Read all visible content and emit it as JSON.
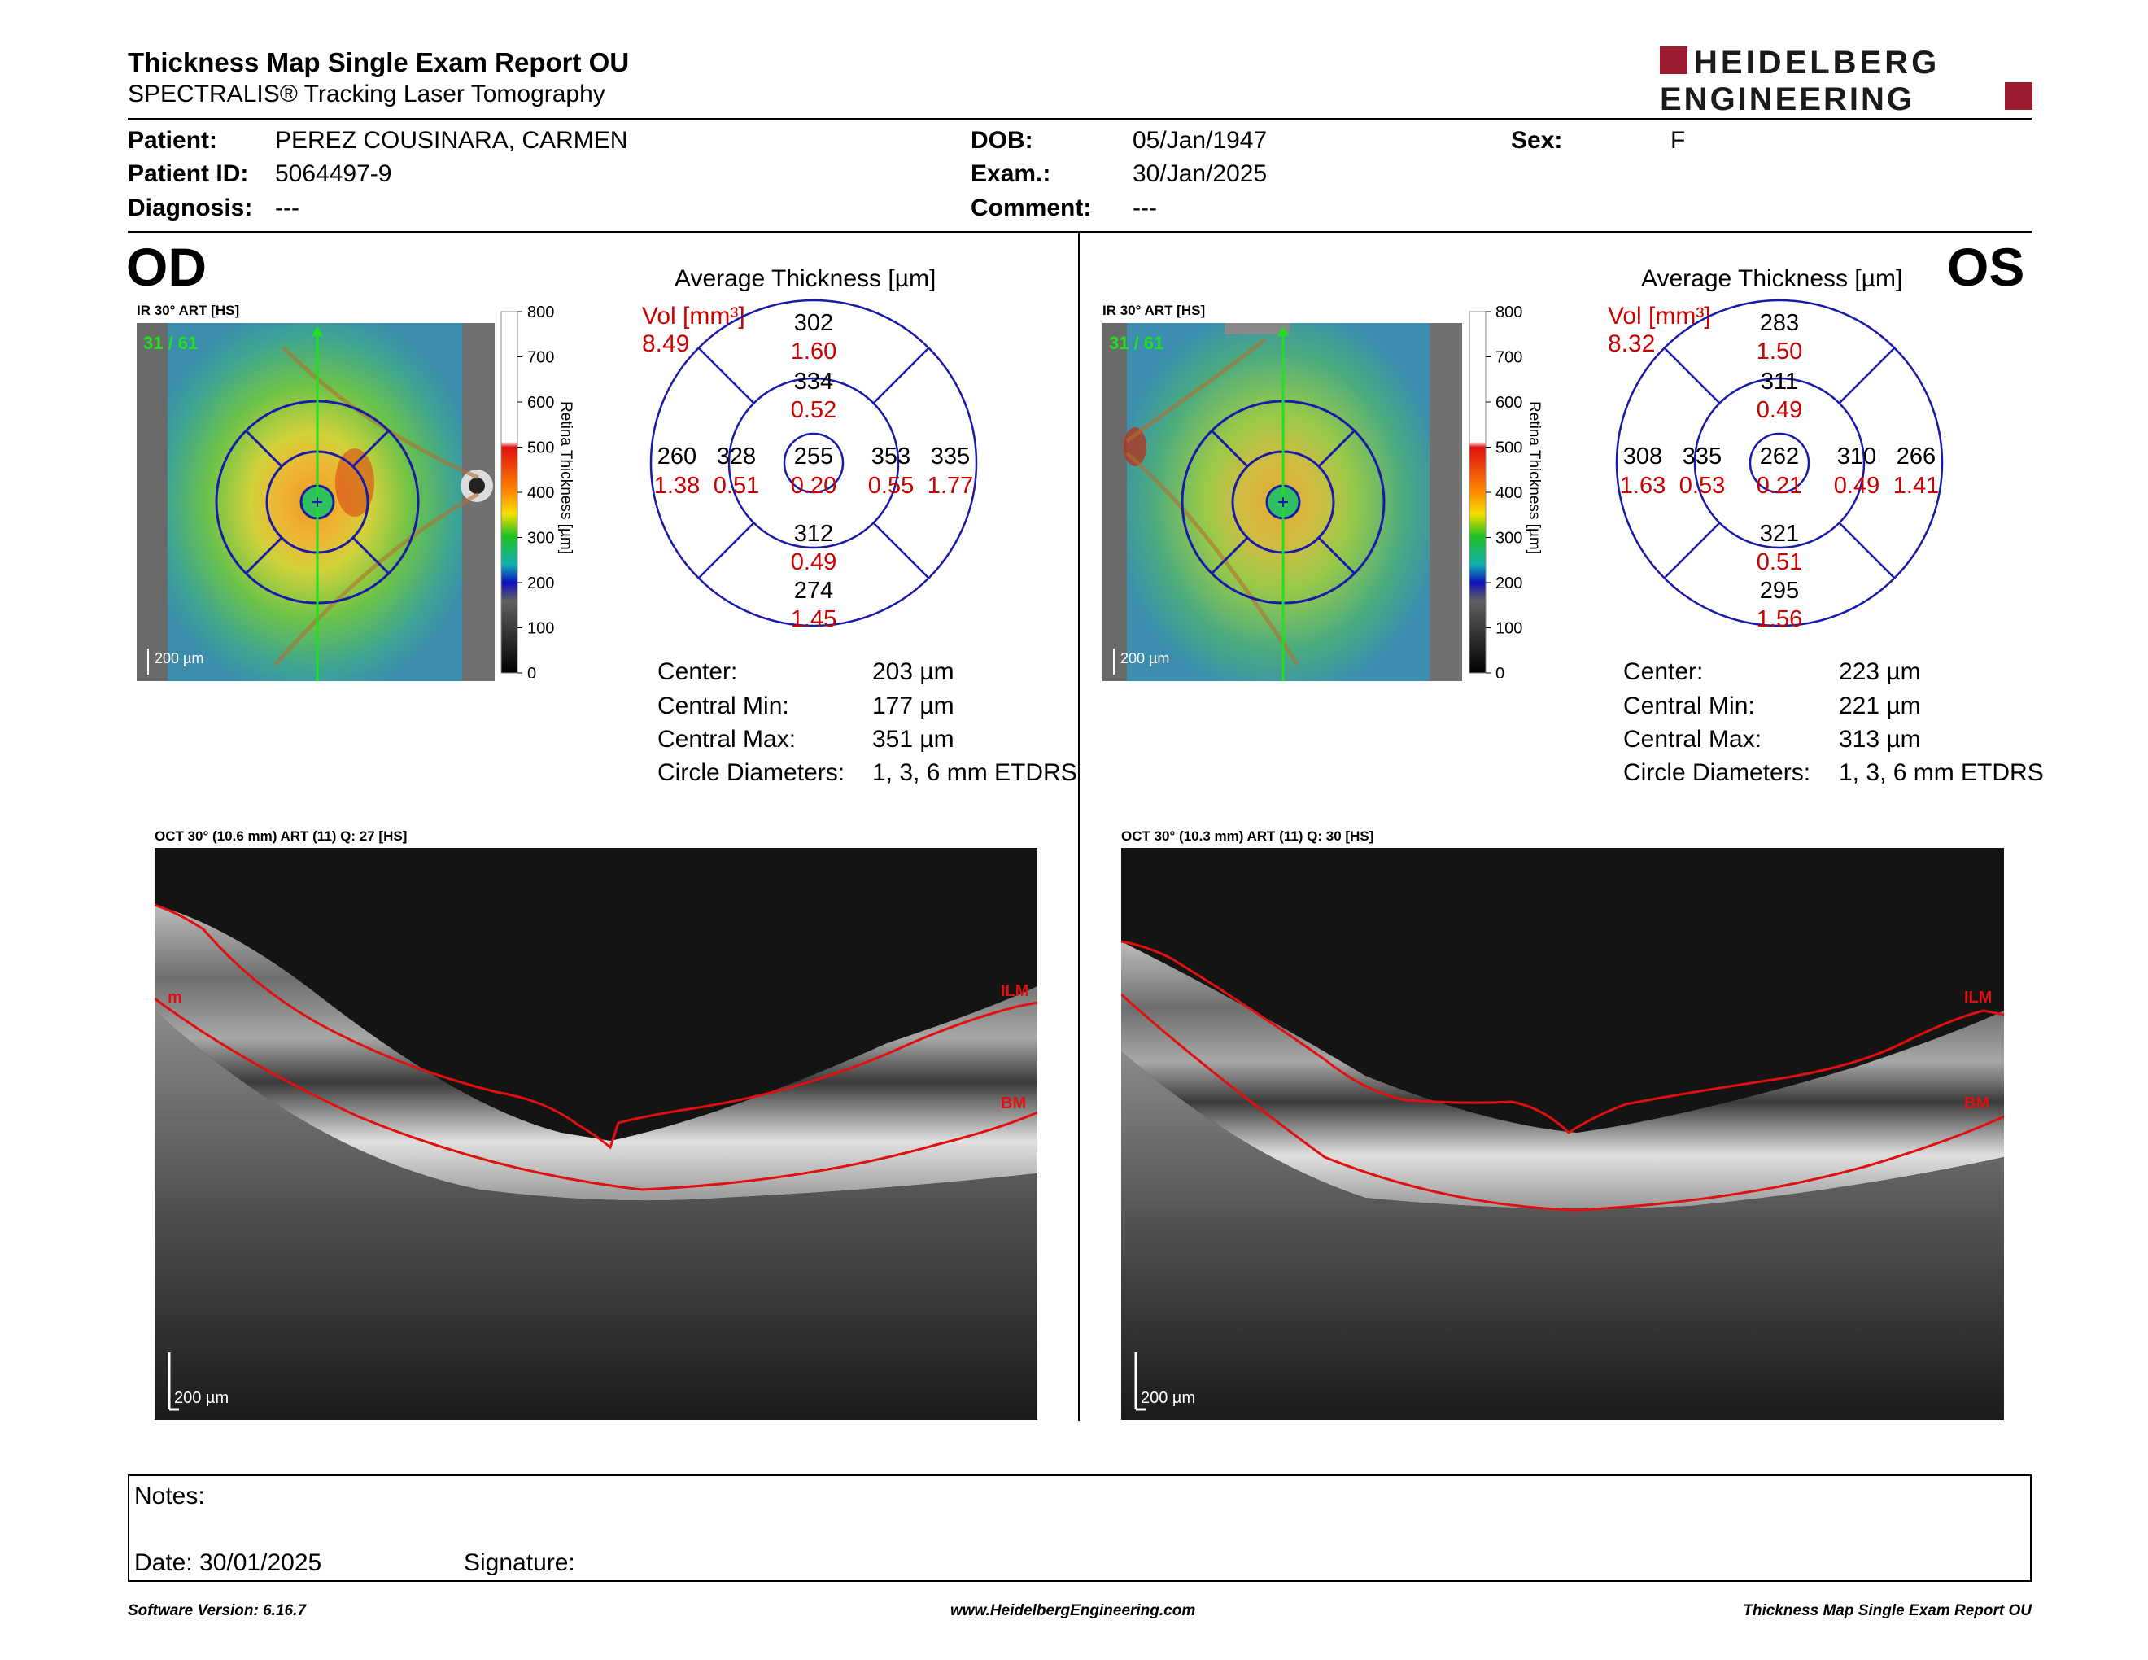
{
  "report": {
    "title": "Thickness Map Single Exam Report OU",
    "subtitle": "SPECTRALIS® Tracking Laser Tomography",
    "brand_line1": "HEIDELBERG",
    "brand_line2": "ENGINEERING"
  },
  "patient": {
    "patient_label": "Patient:",
    "patient_value": "PEREZ COUSINARA, CARMEN",
    "id_label": "Patient ID:",
    "id_value": "5064497-9",
    "diagnosis_label": "Diagnosis:",
    "diagnosis_value": "---",
    "dob_label": "DOB:",
    "dob_value": "05/Jan/1947",
    "exam_label": "Exam.:",
    "exam_value": "30/Jan/2025",
    "comment_label": "Comment:",
    "comment_value": "---",
    "sex_label": "Sex:",
    "sex_value": "F"
  },
  "colorbar": {
    "ticks": [
      "800",
      "700",
      "600",
      "500",
      "400",
      "300",
      "200",
      "100",
      "0"
    ],
    "label": "Retina  Thickness [µm]"
  },
  "od": {
    "eye": "OD",
    "ir_caption": "IR 30° ART [HS]",
    "frame": "31 / 61",
    "scale": "200 µm",
    "avg_title": "Average Thickness [µm]",
    "vol_label": "Vol [mm³]",
    "vol_value": "8.49",
    "etdrs": {
      "superior_outer": [
        "302",
        "1.60"
      ],
      "superior_inner": [
        "334",
        "0.52"
      ],
      "temporal_outer": [
        "260",
        "1.38"
      ],
      "temporal_inner": [
        "328",
        "0.51"
      ],
      "center": [
        "255",
        "0.20"
      ],
      "nasal_inner": [
        "353",
        "0.55"
      ],
      "nasal_outer": [
        "335",
        "1.77"
      ],
      "inferior_inner": [
        "312",
        "0.49"
      ],
      "inferior_outer": [
        "274",
        "1.45"
      ]
    },
    "stats": [
      {
        "label": "Center:",
        "value": "203 µm"
      },
      {
        "label": "Central Min:",
        "value": "177 µm"
      },
      {
        "label": "Central Max:",
        "value": "351 µm"
      },
      {
        "label": "Circle Diameters:",
        "value": "1, 3, 6 mm ETDRS"
      }
    ],
    "oct_caption": "OCT 30° (10.6 mm) ART (11) Q: 27 [HS]",
    "oct_scale": "200 µm",
    "ilm": "ILM",
    "bm": "BM",
    "ilm_cut": "m"
  },
  "os": {
    "eye": "OS",
    "ir_caption": "IR 30° ART [HS]",
    "frame": "31 / 61",
    "scale": "200 µm",
    "avg_title": "Average Thickness [µm]",
    "vol_label": "Vol [mm³]",
    "vol_value": "8.32",
    "etdrs": {
      "superior_outer": [
        "283",
        "1.50"
      ],
      "superior_inner": [
        "311",
        "0.49"
      ],
      "temporal_outer": [
        "308",
        "1.63"
      ],
      "temporal_inner": [
        "335",
        "0.53"
      ],
      "center": [
        "262",
        "0.21"
      ],
      "nasal_inner": [
        "310",
        "0.49"
      ],
      "nasal_outer": [
        "266",
        "1.41"
      ],
      "inferior_inner": [
        "321",
        "0.51"
      ],
      "inferior_outer": [
        "295",
        "1.56"
      ]
    },
    "stats": [
      {
        "label": "Center:",
        "value": "223 µm"
      },
      {
        "label": "Central Min:",
        "value": "221 µm"
      },
      {
        "label": "Central Max:",
        "value": "313 µm"
      },
      {
        "label": "Circle Diameters:",
        "value": "1, 3, 6 mm ETDRS"
      }
    ],
    "oct_caption": "OCT 30° (10.3 mm) ART (11) Q: 30 [HS]",
    "oct_scale": "200 µm",
    "ilm": "ILM",
    "bm": "BM"
  },
  "notes": {
    "notes_label": "Notes:",
    "date_label": "Date: 30/01/2025",
    "signature_label": "Signature:"
  },
  "footer": {
    "software": "Software Version: 6.16.7",
    "website": "www.HeidelbergEngineering.com",
    "report_name": "Thickness Map Single Exam Report OU"
  },
  "colors": {
    "accent_red": "#cc0000",
    "grid_blue": "#1a1aa8",
    "brand_red": "#9b1b30"
  }
}
